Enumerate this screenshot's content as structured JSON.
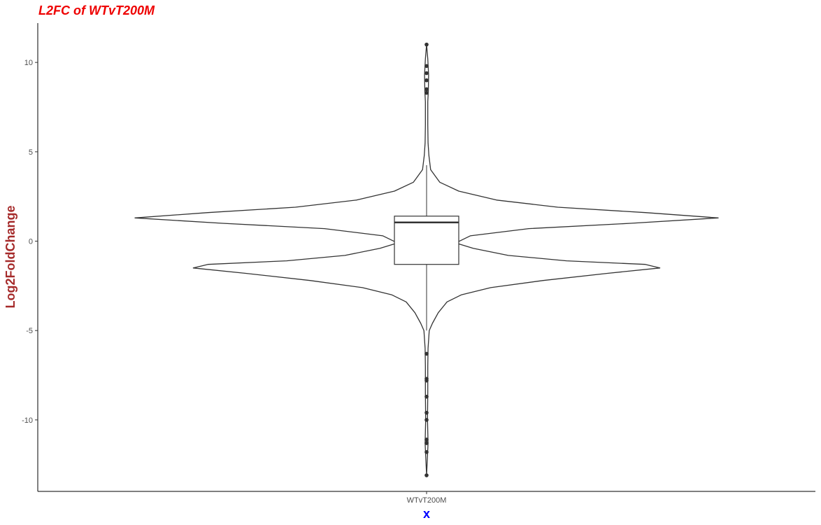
{
  "chart_data": {
    "type": "violin",
    "title": "L2FC of WTvT200M",
    "xlabel": "x",
    "ylabel": "Log2FoldChange",
    "categories": [
      "WTvT200M"
    ],
    "ylim": [
      -14.0,
      12.2
    ],
    "yticks": [
      10,
      5,
      0,
      -5,
      -10
    ],
    "ytick_labels": [
      "10",
      "5",
      "0",
      "-5",
      "-10"
    ],
    "grid": false,
    "legend": "none",
    "colors": {
      "title": "#ee0000",
      "ylabel": "#a52a2a",
      "xlabel": "#0000ff",
      "line": "#333333",
      "axis": "#000000"
    },
    "violin_density": [
      {
        "y": -13.1,
        "d": 0.0
      },
      {
        "y": -12.0,
        "d": 0.003
      },
      {
        "y": -11.3,
        "d": 0.005
      },
      {
        "y": -10.0,
        "d": 0.003
      },
      {
        "y": -8.5,
        "d": 0.004
      },
      {
        "y": -7.0,
        "d": 0.004
      },
      {
        "y": -6.0,
        "d": 0.005
      },
      {
        "y": -5.0,
        "d": 0.009
      },
      {
        "y": -4.6,
        "d": 0.02
      },
      {
        "y": -4.0,
        "d": 0.04
      },
      {
        "y": -3.4,
        "d": 0.07
      },
      {
        "y": -3.0,
        "d": 0.12
      },
      {
        "y": -2.6,
        "d": 0.22
      },
      {
        "y": -2.2,
        "d": 0.4
      },
      {
        "y": -1.8,
        "d": 0.62
      },
      {
        "y": -1.5,
        "d": 0.8
      },
      {
        "y": -1.3,
        "d": 0.75
      },
      {
        "y": -1.1,
        "d": 0.48
      },
      {
        "y": -0.8,
        "d": 0.28
      },
      {
        "y": -0.4,
        "d": 0.16
      },
      {
        "y": -0.1,
        "d": 0.1
      },
      {
        "y": 0.3,
        "d": 0.15
      },
      {
        "y": 0.7,
        "d": 0.35
      },
      {
        "y": 1.0,
        "d": 0.7
      },
      {
        "y": 1.3,
        "d": 1.0
      },
      {
        "y": 1.6,
        "d": 0.75
      },
      {
        "y": 1.9,
        "d": 0.45
      },
      {
        "y": 2.3,
        "d": 0.24
      },
      {
        "y": 2.8,
        "d": 0.11
      },
      {
        "y": 3.3,
        "d": 0.045
      },
      {
        "y": 4.0,
        "d": 0.014
      },
      {
        "y": 4.8,
        "d": 0.008
      },
      {
        "y": 5.5,
        "d": 0.005
      },
      {
        "y": 6.5,
        "d": 0.004
      },
      {
        "y": 7.8,
        "d": 0.004
      },
      {
        "y": 8.4,
        "d": 0.006
      },
      {
        "y": 9.3,
        "d": 0.007
      },
      {
        "y": 10.2,
        "d": 0.004
      },
      {
        "y": 11.0,
        "d": 0.0
      }
    ],
    "boxplot": {
      "q1": -1.3,
      "median": 1.05,
      "q3": 1.4,
      "whisker_low": -5.0,
      "whisker_high": 4.25
    },
    "outliers": [
      11.0,
      9.8,
      9.4,
      9.0,
      8.5,
      8.3,
      -6.3,
      -7.7,
      -7.8,
      -8.7,
      -9.6,
      -10.0,
      -11.1,
      -11.3,
      -11.8,
      -13.1
    ]
  }
}
